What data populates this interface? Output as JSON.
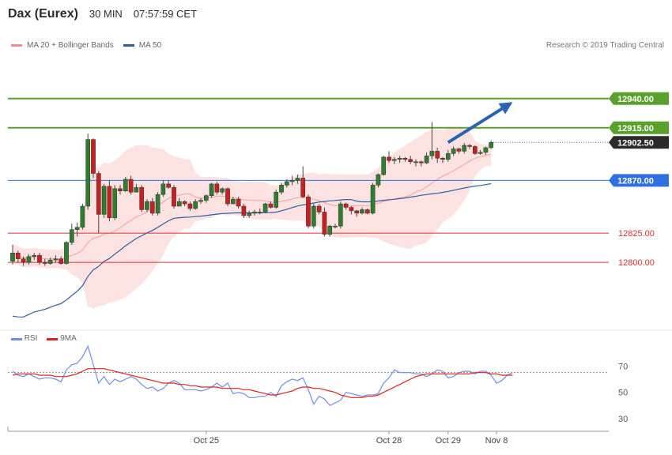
{
  "header": {
    "title": "Dax (Eurex)",
    "timeframe": "30 MIN",
    "time": "07:57:59 CET"
  },
  "legend": {
    "items": [
      {
        "label": "MA 20 + Bollinger Bands",
        "color": "#f4a6a6"
      },
      {
        "label": "MA 50",
        "color": "#2d5fa0"
      }
    ]
  },
  "credit": "Research © 2019 Trading Central",
  "rsi_legend": {
    "items": [
      {
        "label": "RSI",
        "color": "#6f8ee8"
      },
      {
        "label": "9MA",
        "color": "#e02020"
      }
    ]
  },
  "chart_data": [
    {
      "type": "candlestick",
      "ylim": [
        12744,
        12977
      ],
      "levels": [
        {
          "value": 12940,
          "label": "12940.00",
          "kind": "resistance",
          "color": "#5aa02c"
        },
        {
          "value": 12915,
          "label": "12915.00",
          "kind": "resistance",
          "color": "#5aa02c"
        },
        {
          "value": 12902.5,
          "label": "12902.50",
          "kind": "last",
          "color": "#2b2b2b"
        },
        {
          "value": 12870,
          "label": "12870.00",
          "kind": "pivot",
          "color": "#2f6fe0"
        },
        {
          "value": 12825,
          "label": "12825.00",
          "kind": "support",
          "color": "#e03030"
        },
        {
          "value": 12800,
          "label": "12800.00",
          "kind": "support",
          "color": "#e03030"
        }
      ],
      "arrow": {
        "from_bar": 81,
        "from": 12902.5,
        "to_bar": 93,
        "to": 12937
      },
      "x_ticks": [
        {
          "bar": 36,
          "label": "Oct 25"
        },
        {
          "bar": 70,
          "label": "Oct 28"
        },
        {
          "bar": 81,
          "label": "Oct 29"
        },
        {
          "bar": 90,
          "label": "Nov 8"
        }
      ],
      "candles": [
        [
          12801,
          12808,
          12798,
          12815
        ],
        [
          12808,
          12803,
          12800,
          12810
        ],
        [
          12803,
          12800,
          12797,
          12805
        ],
        [
          12800,
          12805,
          12798,
          12807
        ],
        [
          12805,
          12806,
          12802,
          12808
        ],
        [
          12806,
          12800,
          12798,
          12808
        ],
        [
          12800,
          12799,
          12797,
          12803
        ],
        [
          12799,
          12802,
          12798,
          12804
        ],
        [
          12802,
          12803,
          12800,
          12806
        ],
        [
          12803,
          12799,
          12798,
          12805
        ],
        [
          12799,
          12817,
          12798,
          12818
        ],
        [
          12817,
          12828,
          12815,
          12833
        ],
        [
          12828,
          12830,
          12822,
          12834
        ],
        [
          12830,
          12848,
          12828,
          12850
        ],
        [
          12848,
          12905,
          12845,
          12910
        ],
        [
          12905,
          12876,
          12872,
          12906
        ],
        [
          12876,
          12841,
          12825,
          12878
        ],
        [
          12841,
          12865,
          12838,
          12867
        ],
        [
          12865,
          12838,
          12835,
          12870
        ],
        [
          12838,
          12863,
          12836,
          12866
        ],
        [
          12863,
          12861,
          12858,
          12866
        ],
        [
          12861,
          12871,
          12860,
          12873
        ],
        [
          12871,
          12860,
          12858,
          12874
        ],
        [
          12860,
          12864,
          12862,
          12867
        ],
        [
          12864,
          12845,
          12843,
          12866
        ],
        [
          12845,
          12852,
          12843,
          12854
        ],
        [
          12852,
          12842,
          12840,
          12855
        ],
        [
          12842,
          12858,
          12840,
          12860
        ],
        [
          12858,
          12867,
          12856,
          12870
        ],
        [
          12867,
          12864,
          12863,
          12870
        ],
        [
          12864,
          12848,
          12846,
          12866
        ],
        [
          12848,
          12852,
          12848,
          12855
        ],
        [
          12852,
          12850,
          12848,
          12853
        ],
        [
          12850,
          12846,
          12844,
          12852
        ],
        [
          12846,
          12852,
          12845,
          12854
        ],
        [
          12852,
          12853,
          12850,
          12855
        ],
        [
          12853,
          12857,
          12851,
          12858
        ],
        [
          12857,
          12867,
          12855,
          12868
        ],
        [
          12867,
          12860,
          12858,
          12869
        ],
        [
          12860,
          12863,
          12858,
          12864
        ],
        [
          12863,
          12850,
          12848,
          12864
        ],
        [
          12850,
          12854,
          12850,
          12856
        ],
        [
          12854,
          12848,
          12846,
          12856
        ],
        [
          12848,
          12840,
          12838,
          12850
        ],
        [
          12840,
          12842,
          12838,
          12844
        ],
        [
          12842,
          12843,
          12840,
          12845
        ],
        [
          12843,
          12843,
          12841,
          12846
        ],
        [
          12843,
          12850,
          12842,
          12851
        ],
        [
          12850,
          12847,
          12846,
          12852
        ],
        [
          12847,
          12860,
          12846,
          12862
        ],
        [
          12860,
          12866,
          12858,
          12868
        ],
        [
          12866,
          12869,
          12864,
          12871
        ],
        [
          12869,
          12870,
          12866,
          12874
        ],
        [
          12870,
          12872,
          12867,
          12875
        ],
        [
          12872,
          12856,
          12855,
          12882
        ],
        [
          12856,
          12831,
          12829,
          12858
        ],
        [
          12831,
          12848,
          12829,
          12850
        ],
        [
          12848,
          12843,
          12841,
          12850
        ],
        [
          12843,
          12824,
          12822,
          12847
        ],
        [
          12824,
          12831,
          12822,
          12832
        ],
        [
          12831,
          12831,
          12829,
          12833
        ],
        [
          12831,
          12850,
          12829,
          12852
        ],
        [
          12850,
          12847,
          12845,
          12851
        ],
        [
          12847,
          12844,
          12841,
          12848
        ],
        [
          12844,
          12842,
          12839,
          12845
        ],
        [
          12842,
          12845,
          12841,
          12847
        ],
        [
          12845,
          12842,
          12841,
          12846
        ],
        [
          12842,
          12866,
          12841,
          12868
        ],
        [
          12866,
          12875,
          12864,
          12876
        ],
        [
          12875,
          12890,
          12874,
          12891
        ],
        [
          12890,
          12887,
          12885,
          12895
        ],
        [
          12887,
          12888,
          12884,
          12890
        ],
        [
          12888,
          12889,
          12885,
          12891
        ],
        [
          12889,
          12888,
          12886,
          12890
        ],
        [
          12888,
          12886,
          12884,
          12891
        ],
        [
          12886,
          12886,
          12882,
          12888
        ],
        [
          12886,
          12885,
          12882,
          12887
        ],
        [
          12885,
          12891,
          12884,
          12894
        ],
        [
          12891,
          12895,
          12888,
          12920
        ],
        [
          12895,
          12889,
          12885,
          12898
        ],
        [
          12889,
          12888,
          12885,
          12890
        ],
        [
          12888,
          12893,
          12886,
          12896
        ],
        [
          12893,
          12897,
          12891,
          12899
        ],
        [
          12897,
          12895,
          12893,
          12898
        ],
        [
          12895,
          12900,
          12893,
          12902
        ],
        [
          12900,
          12899,
          12897,
          12901
        ],
        [
          12899,
          12893,
          12892,
          12900
        ],
        [
          12893,
          12894,
          12892,
          12896
        ],
        [
          12894,
          12898,
          12892,
          12899
        ],
        [
          12898,
          12902.5,
          12897,
          12904
        ]
      ]
    },
    {
      "type": "line",
      "title": "",
      "ylim": [
        24,
        84
      ],
      "y_ticks": [
        70,
        50,
        30
      ],
      "reference_level": 65,
      "series": [
        {
          "name": "RSI",
          "color": "#6f8ee8",
          "values": [
            66,
            63,
            62,
            64,
            62,
            60,
            61,
            61,
            60,
            58,
            67,
            71,
            72,
            77,
            85,
            71,
            57,
            62,
            56,
            60,
            58,
            60,
            62,
            60,
            56,
            53,
            54,
            51,
            53,
            57,
            59,
            57,
            52,
            52,
            52,
            51,
            52,
            54,
            57,
            54,
            57,
            49,
            50,
            49,
            46,
            46,
            47,
            47,
            50,
            47,
            55,
            58,
            60,
            59,
            61,
            52,
            41,
            47,
            45,
            40,
            42,
            44,
            50,
            49,
            48,
            47,
            48,
            48,
            49,
            57,
            61,
            67,
            65,
            65,
            65,
            64,
            64,
            62,
            64,
            67,
            66,
            61,
            62,
            65,
            66,
            66,
            64,
            66,
            66,
            63,
            57,
            59,
            63,
            65
          ]
        },
        {
          "name": "9MA",
          "color": "#e02020",
          "values": [
            63,
            64,
            64,
            64,
            64,
            63,
            63,
            63,
            62,
            62,
            62,
            63,
            64,
            66,
            68,
            68,
            68,
            68,
            67,
            66,
            65,
            64,
            63,
            62,
            61,
            60,
            59,
            58,
            57,
            57,
            57,
            56,
            56,
            55,
            55,
            54,
            54,
            54,
            54,
            53,
            53,
            53,
            53,
            52,
            52,
            51,
            50,
            49,
            48,
            48,
            49,
            50,
            51,
            53,
            54,
            54,
            53,
            53,
            52,
            51,
            50,
            48,
            47,
            46,
            46,
            46,
            47,
            47,
            48,
            50,
            52,
            54,
            56,
            58,
            60,
            62,
            63,
            64,
            64,
            64,
            64,
            64,
            64,
            64,
            64,
            64,
            65,
            65,
            65,
            64,
            64,
            63,
            63,
            63
          ]
        }
      ]
    }
  ]
}
